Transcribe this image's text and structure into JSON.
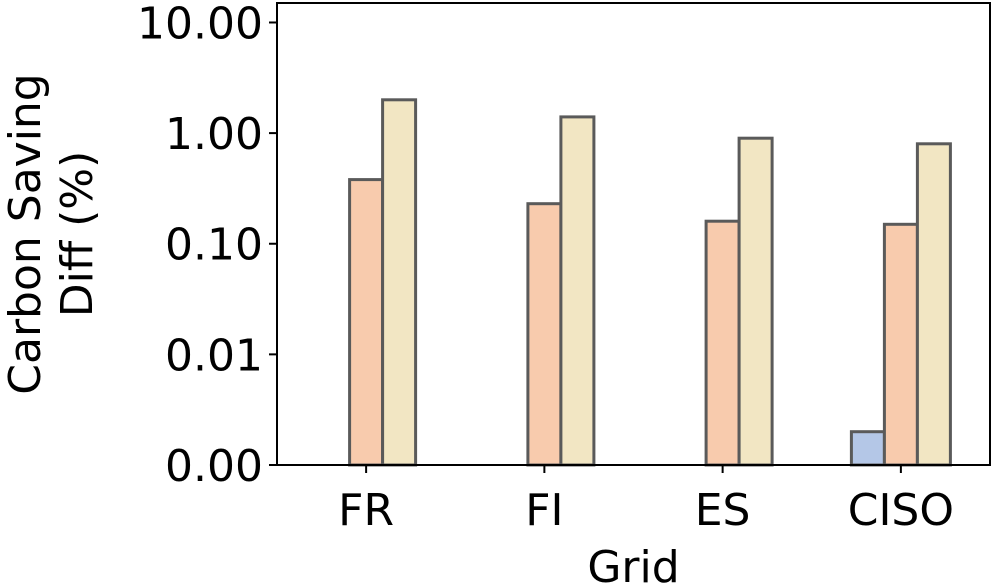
{
  "chart_data": {
    "type": "bar",
    "xlabel": "Grid",
    "ylabel_lines": [
      "Carbon Saving",
      "Diff (%)"
    ],
    "yscale": "log",
    "ylim": [
      0.001,
      15.0
    ],
    "ytick_values": [
      0.001,
      0.01,
      0.1,
      1.0,
      10.0
    ],
    "ytick_labels": [
      "0.00",
      "0.01",
      "0.10",
      "1.00",
      "10.00"
    ],
    "categories": [
      "FR",
      "FI",
      "ES",
      "CISO"
    ],
    "series": [
      {
        "color": "#b4c7e7",
        "values": [
          0.001,
          0.001,
          0.001,
          0.002
        ]
      },
      {
        "color": "#f8cbad",
        "values": [
          0.38,
          0.23,
          0.16,
          0.15
        ]
      },
      {
        "color": "#f2e6c3",
        "values": [
          2.0,
          1.4,
          0.9,
          0.8
        ]
      }
    ],
    "bar_edge_color": "#5a5a5a",
    "grid": false,
    "legend": "none"
  }
}
